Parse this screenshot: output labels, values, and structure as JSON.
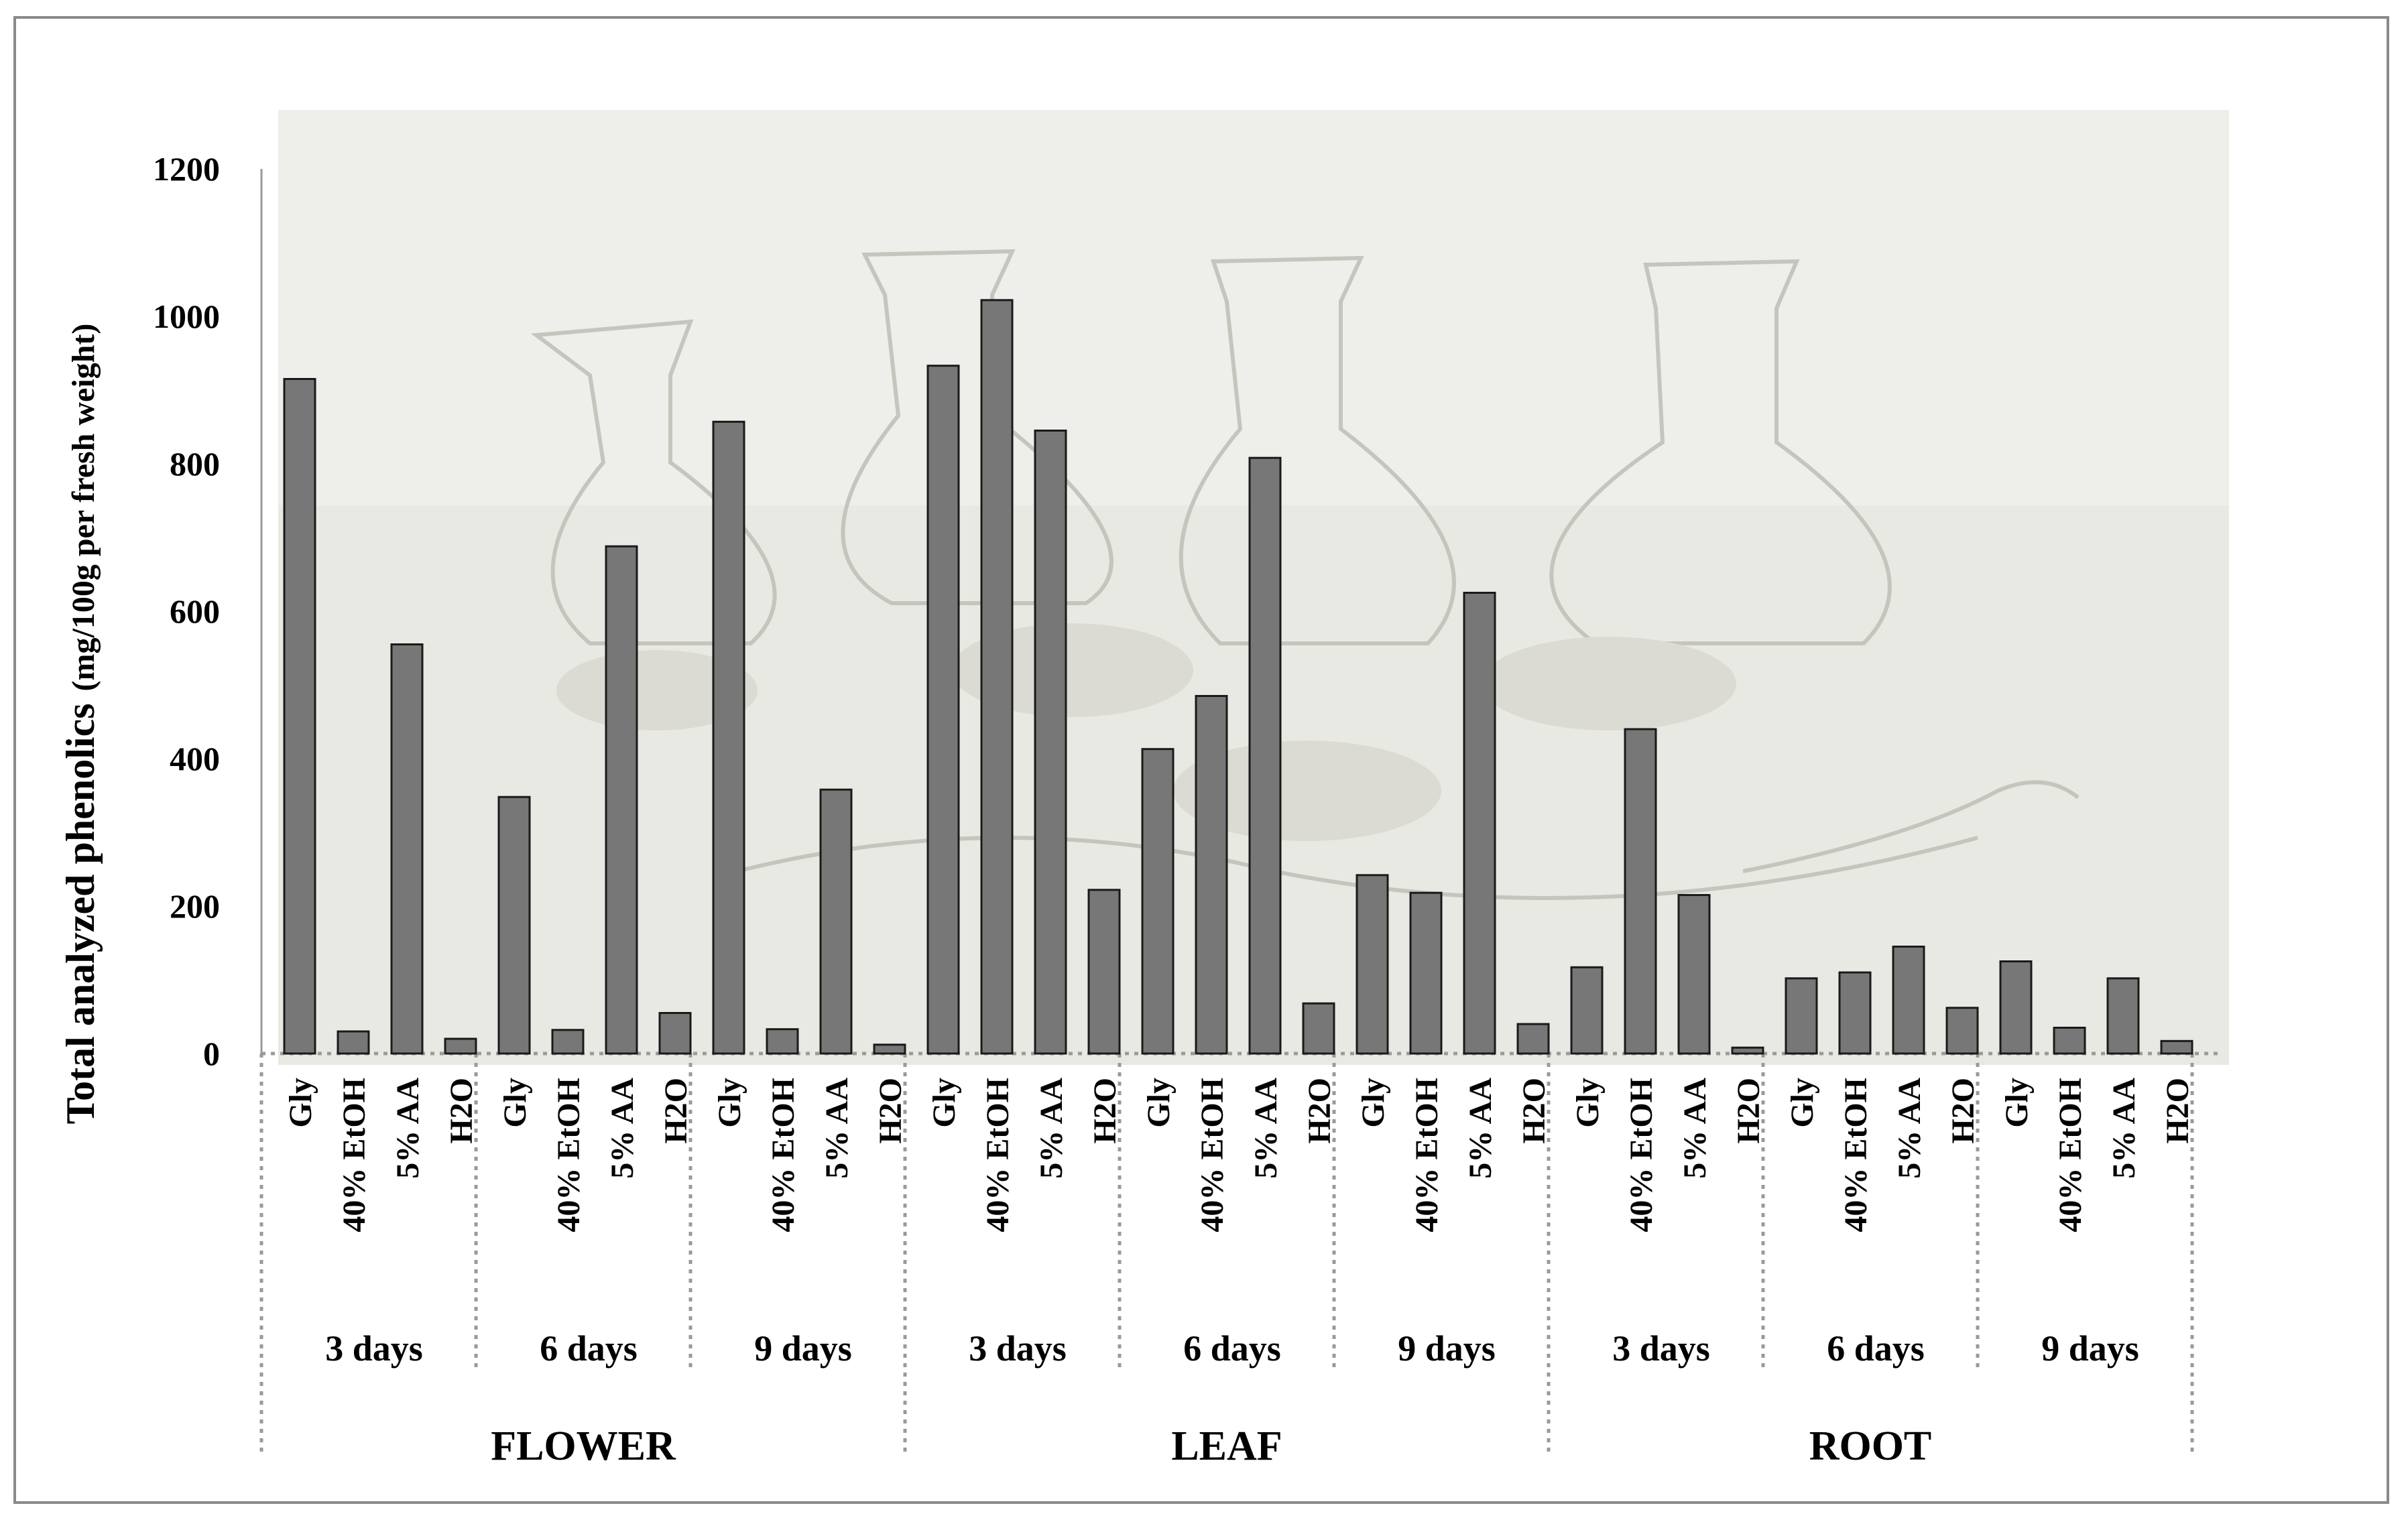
{
  "chart_data": {
    "type": "bar",
    "ylabel": "Total analyzed phenolics",
    "ylabel_unit": "(mg/100g per fresh weight)",
    "ylim": [
      0,
      1200
    ],
    "yticks": [
      "0",
      "200",
      "400",
      "600",
      "800",
      "1000",
      "1200"
    ],
    "grid": false,
    "legend": "none",
    "bar_color": "#777777",
    "solvents": [
      "Gly",
      "40% EtOH",
      "5% AA",
      "H2O"
    ],
    "organs": [
      {
        "name": "FLOWER",
        "periods": [
          {
            "label": "3 days",
            "values": [
              915,
              30,
              555,
              20
            ]
          },
          {
            "label": "6 days",
            "values": [
              348,
              32,
              688,
              55
            ]
          },
          {
            "label": "9 days",
            "values": [
              857,
              33,
              358,
              12
            ]
          }
        ]
      },
      {
        "name": "LEAF",
        "periods": [
          {
            "label": "3 days",
            "values": [
              933,
              1022,
              845,
              222
            ]
          },
          {
            "label": "6 days",
            "values": [
              413,
              485,
              808,
              68
            ]
          },
          {
            "label": "9 days",
            "values": [
              242,
              218,
              625,
              40
            ]
          }
        ]
      },
      {
        "name": "ROOT",
        "periods": [
          {
            "label": "3 days",
            "values": [
              117,
              440,
              215,
              8
            ]
          },
          {
            "label": "6 days",
            "values": [
              102,
              110,
              145,
              62
            ]
          },
          {
            "label": "9 days",
            "values": [
              125,
              35,
              102,
              17
            ]
          }
        ]
      }
    ]
  }
}
